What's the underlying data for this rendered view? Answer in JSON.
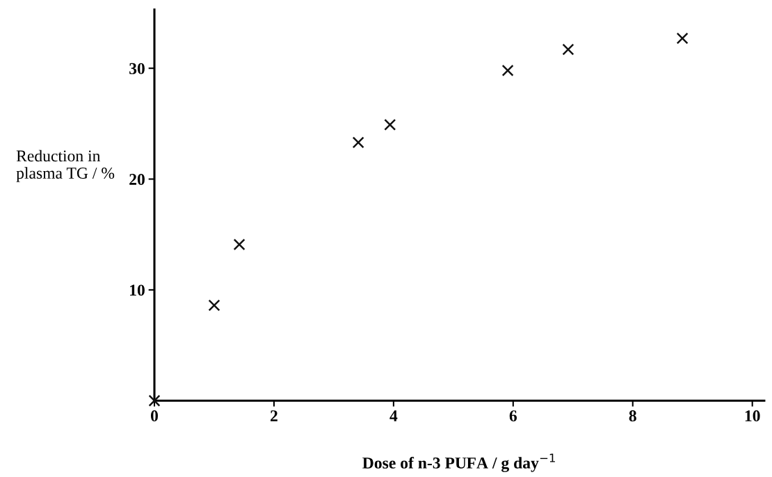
{
  "chart_data": {
    "type": "scatter",
    "xlabel": "Dose of n-3 PUFA / g day$^{−1}$",
    "ylabel": "Reduction in\nplasma TG / %",
    "x": [
      0,
      1.0,
      1.42,
      3.41,
      3.94,
      5.91,
      6.92,
      8.83
    ],
    "values": [
      0,
      8.6,
      14.1,
      23.3,
      24.9,
      29.8,
      31.7,
      32.7
    ],
    "color": "#111111",
    "marker": "cross",
    "xlim": [
      0,
      10.2
    ],
    "ylim": [
      0,
      35.3
    ],
    "xticks": [
      0,
      2,
      4,
      6,
      8,
      10
    ],
    "yticks": [
      10,
      20,
      30
    ],
    "grid": false,
    "legend": false
  }
}
